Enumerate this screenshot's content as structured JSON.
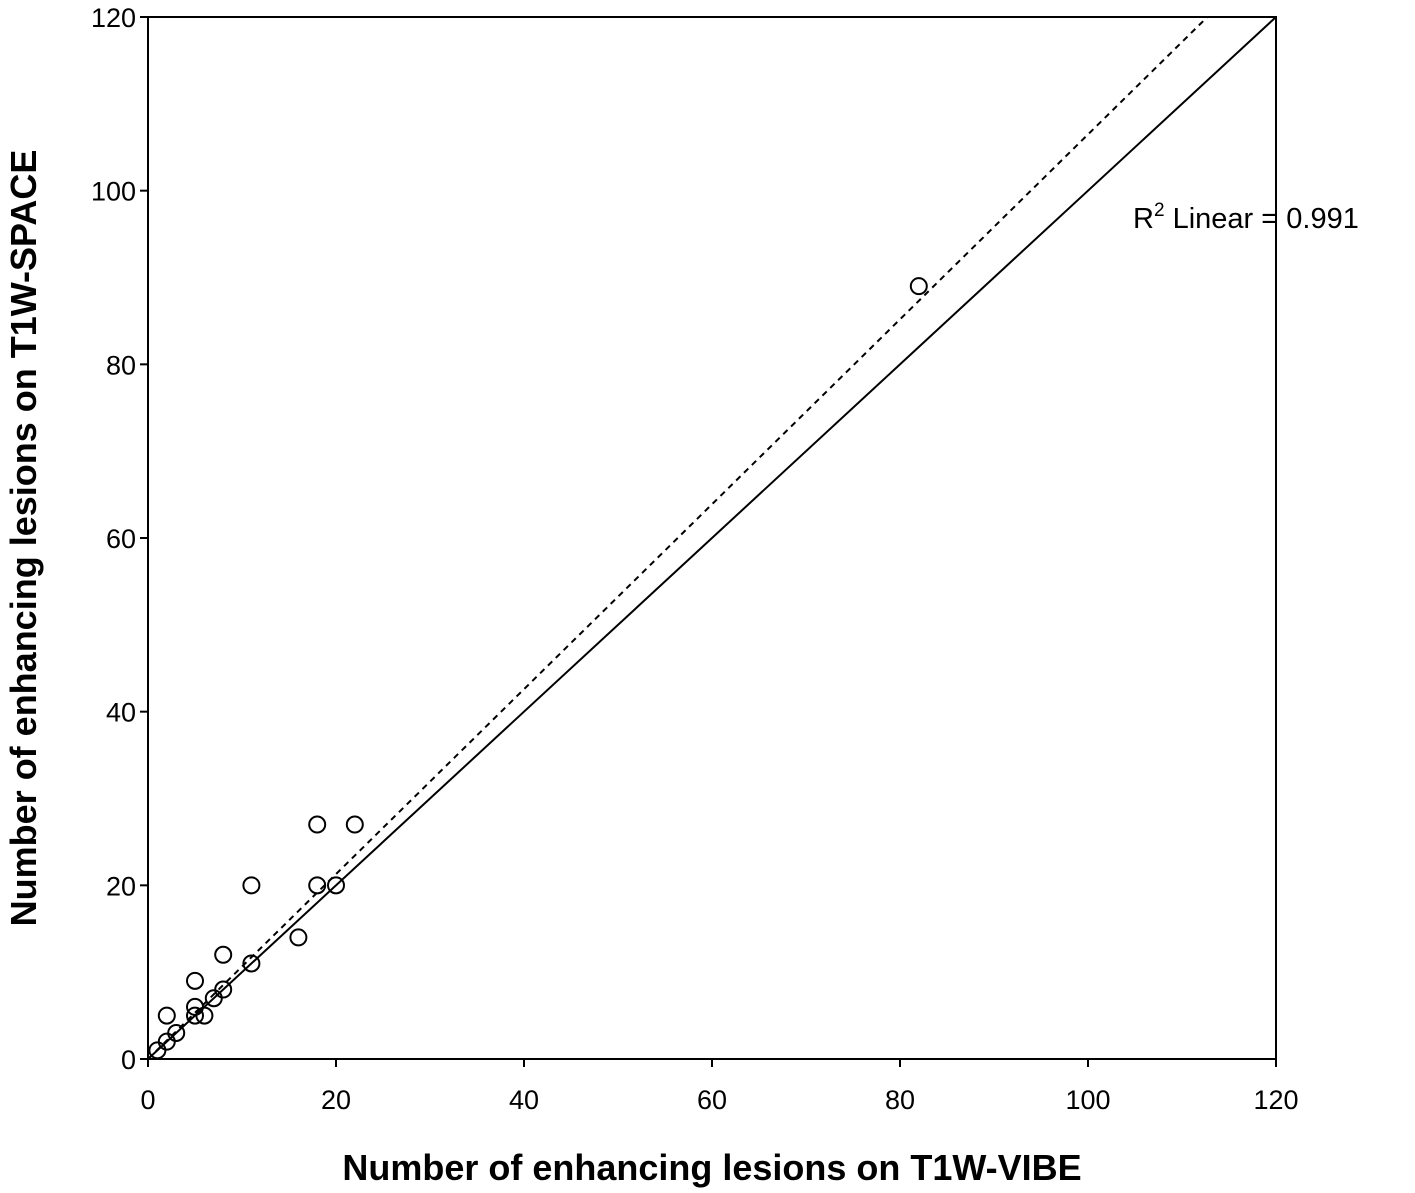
{
  "chart_data": {
    "type": "scatter",
    "title": "",
    "xlabel": "Number of enhancing lesions on T1W-VIBE",
    "ylabel": "Number of enhancing lesions on T1W-SPACE",
    "xlim": [
      0,
      120
    ],
    "ylim": [
      0,
      120
    ],
    "xticks": [
      "0",
      "20",
      "40",
      "60",
      "80",
      "100",
      "120"
    ],
    "yticks": [
      "0",
      "20",
      "40",
      "60",
      "80",
      "100",
      "120"
    ],
    "grid": false,
    "points": [
      {
        "x": 1,
        "y": 1
      },
      {
        "x": 2,
        "y": 2
      },
      {
        "x": 2,
        "y": 5
      },
      {
        "x": 3,
        "y": 3
      },
      {
        "x": 5,
        "y": 5
      },
      {
        "x": 5,
        "y": 6
      },
      {
        "x": 5,
        "y": 9
      },
      {
        "x": 6,
        "y": 5
      },
      {
        "x": 7,
        "y": 7
      },
      {
        "x": 8,
        "y": 8
      },
      {
        "x": 8,
        "y": 12
      },
      {
        "x": 11,
        "y": 11
      },
      {
        "x": 11,
        "y": 20
      },
      {
        "x": 16,
        "y": 14
      },
      {
        "x": 18,
        "y": 20
      },
      {
        "x": 18,
        "y": 27
      },
      {
        "x": 20,
        "y": 20
      },
      {
        "x": 22,
        "y": 27
      },
      {
        "x": 82,
        "y": 89
      }
    ],
    "reference_line": {
      "style": "solid",
      "from": [
        0,
        0
      ],
      "to": [
        120,
        120
      ]
    },
    "fit_line": {
      "style": "dashed",
      "from": [
        0,
        0
      ],
      "to": [
        112.7,
        120
      ]
    },
    "annotation": {
      "prefix": "R",
      "superscript": "2",
      "text": " Linear = 0.991"
    }
  }
}
